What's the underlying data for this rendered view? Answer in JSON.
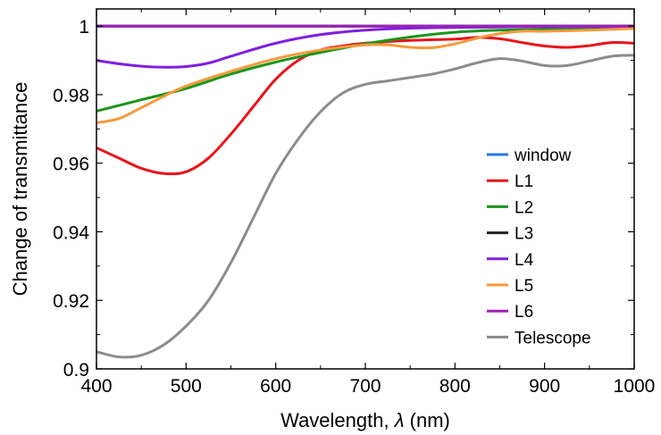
{
  "chart_data": {
    "type": "line",
    "xlabel_prefix": "Wavelength, ",
    "xlabel_symbol": "λ",
    "xlabel_suffix": " (nm)",
    "ylabel": "Change of transmittance",
    "xlim": [
      400,
      1000
    ],
    "ylim": [
      0.9,
      1.005
    ],
    "xticks": [
      400,
      500,
      600,
      700,
      800,
      900,
      1000
    ],
    "xtick_labels": [
      "400",
      "500",
      "600",
      "700",
      "800",
      "900",
      "1000"
    ],
    "yticks": [
      0.9,
      0.92,
      0.94,
      0.96,
      0.98,
      1.0
    ],
    "ytick_labels": [
      "0.9",
      "0.92",
      "0.94",
      "0.96",
      "0.98",
      "1"
    ],
    "grid": false,
    "legend_position": "lower-right",
    "series": [
      {
        "name": "window",
        "color": "#1f77e8",
        "points": [
          [
            400,
            1.0
          ],
          [
            1000,
            1.0
          ]
        ]
      },
      {
        "name": "L1",
        "color": "#e8141a",
        "points": [
          [
            400,
            0.9645
          ],
          [
            425,
            0.9615
          ],
          [
            450,
            0.9585
          ],
          [
            475,
            0.957
          ],
          [
            500,
            0.9575
          ],
          [
            525,
            0.9615
          ],
          [
            550,
            0.9685
          ],
          [
            575,
            0.9765
          ],
          [
            600,
            0.9845
          ],
          [
            625,
            0.99
          ],
          [
            650,
            0.993
          ],
          [
            675,
            0.9942
          ],
          [
            700,
            0.995
          ],
          [
            750,
            0.9958
          ],
          [
            800,
            0.9962
          ],
          [
            825,
            0.9967
          ],
          [
            850,
            0.9963
          ],
          [
            875,
            0.9952
          ],
          [
            900,
            0.9942
          ],
          [
            925,
            0.9938
          ],
          [
            950,
            0.9943
          ],
          [
            975,
            0.9952
          ],
          [
            1000,
            0.995
          ]
        ]
      },
      {
        "name": "L2",
        "color": "#1a961a",
        "points": [
          [
            400,
            0.9752
          ],
          [
            450,
            0.9785
          ],
          [
            500,
            0.9818
          ],
          [
            550,
            0.986
          ],
          [
            600,
            0.9895
          ],
          [
            650,
            0.9923
          ],
          [
            700,
            0.9948
          ],
          [
            750,
            0.9968
          ],
          [
            800,
            0.9982
          ],
          [
            850,
            0.9988
          ],
          [
            900,
            0.999
          ],
          [
            1000,
            0.9993
          ]
        ]
      },
      {
        "name": "L3",
        "color": "#222222",
        "points": [
          [
            400,
            1.0
          ],
          [
            1000,
            1.0
          ]
        ]
      },
      {
        "name": "L4",
        "color": "#7f1fe0",
        "points": [
          [
            400,
            0.99
          ],
          [
            425,
            0.989
          ],
          [
            450,
            0.9883
          ],
          [
            475,
            0.988
          ],
          [
            500,
            0.9882
          ],
          [
            525,
            0.9892
          ],
          [
            550,
            0.9912
          ],
          [
            600,
            0.995
          ],
          [
            650,
            0.9975
          ],
          [
            700,
            0.9988
          ],
          [
            750,
            0.9994
          ],
          [
            800,
            0.9996
          ],
          [
            900,
            0.9998
          ],
          [
            1000,
            0.9998
          ]
        ]
      },
      {
        "name": "L5",
        "color": "#f59a3c",
        "points": [
          [
            400,
            0.9718
          ],
          [
            425,
            0.973
          ],
          [
            450,
            0.9762
          ],
          [
            475,
            0.9795
          ],
          [
            500,
            0.9825
          ],
          [
            550,
            0.9868
          ],
          [
            600,
            0.9905
          ],
          [
            650,
            0.993
          ],
          [
            700,
            0.9945
          ],
          [
            725,
            0.9945
          ],
          [
            750,
            0.9938
          ],
          [
            775,
            0.9937
          ],
          [
            800,
            0.9948
          ],
          [
            825,
            0.9965
          ],
          [
            850,
            0.9978
          ],
          [
            875,
            0.9985
          ],
          [
            900,
            0.9985
          ],
          [
            950,
            0.9988
          ],
          [
            1000,
            0.9993
          ]
        ]
      },
      {
        "name": "L6",
        "color": "#a020b8",
        "points": [
          [
            400,
            1.0
          ],
          [
            1000,
            1.0
          ]
        ]
      },
      {
        "name": "Telescope",
        "color": "#8c8c8c",
        "points": [
          [
            400,
            0.905
          ],
          [
            425,
            0.9035
          ],
          [
            450,
            0.904
          ],
          [
            475,
            0.907
          ],
          [
            500,
            0.9125
          ],
          [
            525,
            0.92
          ],
          [
            550,
            0.931
          ],
          [
            575,
            0.944
          ],
          [
            600,
            0.957
          ],
          [
            625,
            0.967
          ],
          [
            650,
            0.975
          ],
          [
            675,
            0.9805
          ],
          [
            700,
            0.983
          ],
          [
            725,
            0.984
          ],
          [
            750,
            0.985
          ],
          [
            775,
            0.986
          ],
          [
            800,
            0.9875
          ],
          [
            825,
            0.9893
          ],
          [
            850,
            0.9905
          ],
          [
            875,
            0.9898
          ],
          [
            900,
            0.9885
          ],
          [
            925,
            0.9885
          ],
          [
            950,
            0.9898
          ],
          [
            975,
            0.9912
          ],
          [
            1000,
            0.9915
          ]
        ]
      }
    ]
  }
}
